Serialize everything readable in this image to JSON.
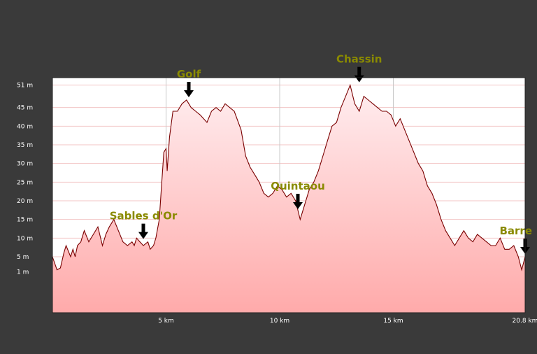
{
  "chart_data": {
    "type": "area",
    "title": "",
    "xlabel": "",
    "ylabel": "",
    "x_unit": "km",
    "y_unit": "m",
    "xlim": [
      0,
      20.8
    ],
    "ylim": [
      -10,
      53
    ],
    "x_ticks": [
      {
        "value": 5,
        "label": "5 km"
      },
      {
        "value": 10,
        "label": "10 km"
      },
      {
        "value": 15,
        "label": "15 km"
      },
      {
        "value": 20.8,
        "label": "20.8 km"
      }
    ],
    "y_ticks": [
      {
        "value": 1,
        "label": "1 m"
      },
      {
        "value": 5,
        "label": "5 m"
      },
      {
        "value": 10,
        "label": "10 m"
      },
      {
        "value": 15,
        "label": "15 m"
      },
      {
        "value": 20,
        "label": "20 m"
      },
      {
        "value": 25,
        "label": "25 m"
      },
      {
        "value": 30,
        "label": "30 m"
      },
      {
        "value": 35,
        "label": "35 m"
      },
      {
        "value": 40,
        "label": "40 m"
      },
      {
        "value": 45,
        "label": "45 m"
      },
      {
        "value": 51,
        "label": "51 m"
      }
    ],
    "grid": true,
    "colors": {
      "background": "#3a3a3a",
      "plot_background": "#ffffff",
      "line": "#7a0000",
      "fill_top": "#ffeef0",
      "fill_bottom": "#ffaaaa",
      "grid": "#f3c4c4",
      "vertical_grid": "#c8c8c8",
      "annotation": "#8a8a00",
      "arrow": "#000000"
    },
    "series": [
      {
        "x": [
          0,
          0.2,
          0.35,
          0.5,
          0.6,
          0.8,
          0.9,
          1.0,
          1.1,
          1.25,
          1.4,
          1.6,
          1.8,
          2.0,
          2.2,
          2.35,
          2.5,
          2.7,
          2.9,
          3.1,
          3.3,
          3.5,
          3.6,
          3.7,
          3.85,
          4.0,
          4.2,
          4.3,
          4.45,
          4.55,
          4.7,
          4.8,
          4.9,
          5.0,
          5.05,
          5.15,
          5.3,
          5.5,
          5.7,
          5.9,
          6.1,
          6.3,
          6.5,
          6.8,
          7.0,
          7.2,
          7.4,
          7.6,
          7.8,
          8.0,
          8.3,
          8.5,
          8.7,
          8.9,
          9.1,
          9.3,
          9.5,
          9.7,
          9.9,
          10.1,
          10.3,
          10.5,
          10.7,
          10.9,
          11.1,
          11.3,
          11.5,
          11.7,
          11.9,
          12.1,
          12.3,
          12.5,
          12.7,
          12.9,
          13.1,
          13.3,
          13.5,
          13.7,
          13.9,
          14.1,
          14.3,
          14.5,
          14.7,
          14.9,
          15.1,
          15.3,
          15.5,
          15.7,
          15.9,
          16.1,
          16.3,
          16.5,
          16.7,
          16.9,
          17.1,
          17.3,
          17.5,
          17.7,
          17.9,
          18.1,
          18.3,
          18.5,
          18.7,
          18.9,
          19.1,
          19.3,
          19.5,
          19.7,
          19.9,
          20.1,
          20.3,
          20.5,
          20.65,
          20.8
        ],
        "y": [
          5,
          1.5,
          2,
          6,
          8,
          5,
          7,
          5,
          8,
          9,
          12,
          9,
          11,
          13,
          8,
          11,
          13,
          15,
          12,
          9,
          8,
          9,
          8,
          10,
          9,
          8,
          9,
          7,
          8,
          10,
          15,
          24,
          33,
          34,
          28,
          37,
          44,
          44,
          46,
          47,
          45,
          44,
          43,
          41,
          44,
          45,
          44,
          46,
          45,
          44,
          39,
          32,
          29,
          27,
          25,
          22,
          21,
          22,
          24,
          23,
          21,
          22,
          20,
          15,
          19,
          23,
          25,
          28,
          32,
          36,
          40,
          41,
          45,
          48,
          51,
          46,
          44,
          48,
          47,
          46,
          45,
          44,
          44,
          43,
          40,
          42,
          39,
          36,
          33,
          30,
          28,
          24,
          22,
          19,
          15,
          12,
          10,
          8,
          10,
          12,
          10,
          9,
          11,
          10,
          9,
          8,
          8,
          10,
          7,
          7,
          8,
          5,
          1.5,
          5
        ]
      }
    ],
    "annotations": [
      {
        "label": "Sables d'Or",
        "x": 4.0,
        "y": 9
      },
      {
        "label": "Golf",
        "x": 6.0,
        "y": 47
      },
      {
        "label": "Quintaou",
        "x": 10.8,
        "y": 17
      },
      {
        "label": "Chassin",
        "x": 13.5,
        "y": 51
      },
      {
        "label": "Barre",
        "x": 20.8,
        "y": 5
      }
    ]
  }
}
